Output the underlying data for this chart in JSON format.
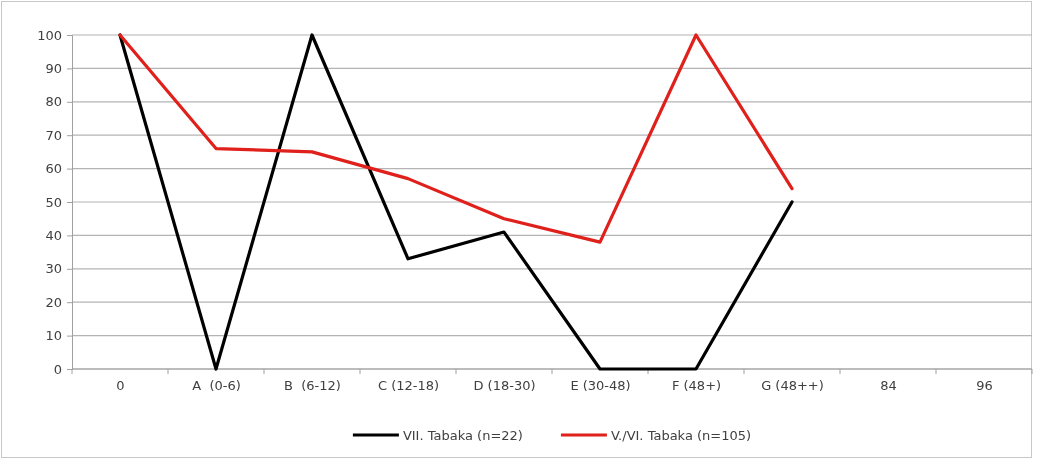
{
  "chart_data": {
    "type": "line",
    "categories": [
      "0",
      "A  (0-6)",
      "B  (6-12)",
      "C (12-18)",
      "D (18-30)",
      "E (30-48)",
      "F (48+)",
      "G (48++)",
      "84",
      "96"
    ],
    "series": [
      {
        "name": "VII. Tabaka (n=22)",
        "color": "#000000",
        "values": [
          100,
          0,
          100,
          33,
          41,
          0,
          0,
          50,
          null,
          null
        ]
      },
      {
        "name": "V./VI. Tabaka (n=105)",
        "color": "#e0201b",
        "values": [
          100,
          66,
          65,
          57,
          45,
          38,
          100,
          54,
          null,
          null
        ]
      }
    ],
    "ylim": [
      0,
      100
    ],
    "yticks": [
      0,
      10,
      20,
      30,
      40,
      50,
      60,
      70,
      80,
      90,
      100
    ],
    "grid": "y",
    "legend": "bottom",
    "marker": "none",
    "line_style": "solid"
  }
}
